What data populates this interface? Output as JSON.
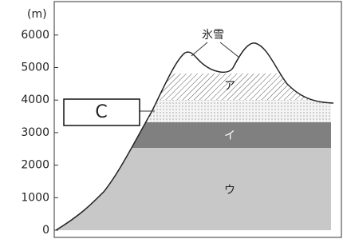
{
  "axis": {
    "unit": "(m)",
    "ticks": [
      "0",
      "1000",
      "2000",
      "3000",
      "4000",
      "5000",
      "6000"
    ]
  },
  "labels": {
    "snow": "氷雪",
    "a": "ア",
    "i": "イ",
    "u": "ウ"
  },
  "box": "C"
}
